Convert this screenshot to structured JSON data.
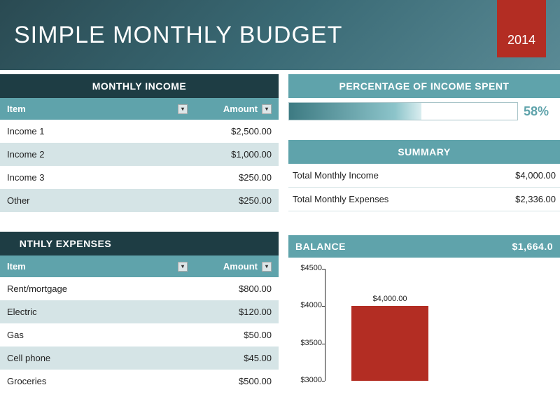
{
  "header": {
    "title": "SIMPLE MONTHLY BUDGET",
    "year": "2014",
    "bg_gradient": [
      "#2a4a52",
      "#5a8a95"
    ],
    "year_bg": "#b32d23"
  },
  "colors": {
    "section_dark": "#1e3d44",
    "section_teal": "#5fa3ab",
    "row_alt": "#d5e4e6",
    "bar_color": "#b32d23",
    "text": "#222222"
  },
  "income": {
    "title": "MONTHLY INCOME",
    "columns": {
      "item": "Item",
      "amount": "Amount"
    },
    "rows": [
      {
        "item": "Income 1",
        "amount": "$2,500.00"
      },
      {
        "item": "Income 2",
        "amount": "$1,000.00"
      },
      {
        "item": "Income 3",
        "amount": "$250.00"
      },
      {
        "item": "Other",
        "amount": "$250.00"
      }
    ]
  },
  "expenses": {
    "title": "NTHLY EXPENSES",
    "columns": {
      "item": "Item",
      "amount": "Amount"
    },
    "rows": [
      {
        "item": "Rent/mortgage",
        "amount": "$800.00"
      },
      {
        "item": "Electric",
        "amount": "$120.00"
      },
      {
        "item": "Gas",
        "amount": "$50.00"
      },
      {
        "item": "Cell phone",
        "amount": "$45.00"
      },
      {
        "item": "Groceries",
        "amount": "$500.00"
      }
    ]
  },
  "percent": {
    "title": "PERCENTAGE OF INCOME SPENT",
    "value": 58,
    "label": "58%",
    "fill_gradient": [
      "#3d7a82",
      "#d9edef"
    ]
  },
  "summary": {
    "title": "SUMMARY",
    "rows": [
      {
        "label": "Total Monthly Income",
        "value": "$4,000.00"
      },
      {
        "label": "Total Monthly Expenses",
        "value": "$2,336.00"
      }
    ]
  },
  "balance": {
    "label": "BALANCE",
    "value": "$1,664.0"
  },
  "chart": {
    "type": "bar",
    "ylim": [
      3000,
      4500
    ],
    "ytick_step": 500,
    "yticks": [
      {
        "v": 4500,
        "label": "$4500"
      },
      {
        "v": 4000,
        "label": "$4000"
      },
      {
        "v": 3500,
        "label": "$3500"
      },
      {
        "v": 3000,
        "label": "$3000"
      }
    ],
    "bar": {
      "value": 4000,
      "label": "$4,000.00",
      "color": "#b32d23"
    },
    "label_fontsize": 11,
    "background": "#ffffff"
  }
}
